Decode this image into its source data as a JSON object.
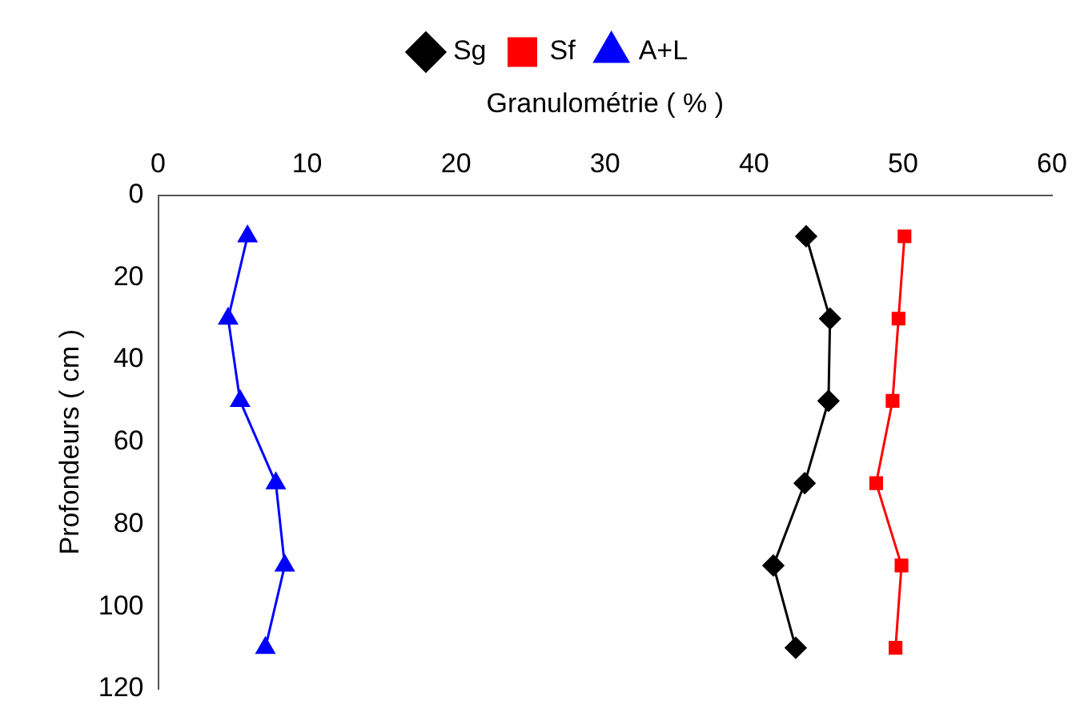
{
  "chart_data": {
    "type": "line",
    "xlabel": "Granulométrie ( % )",
    "ylabel": "Profondeurs ( cm )",
    "xlim": [
      0,
      60
    ],
    "xticks": [
      0,
      10,
      20,
      30,
      40,
      50,
      60
    ],
    "ylim": [
      120,
      0
    ],
    "yticks": [
      0,
      20,
      40,
      60,
      80,
      100,
      120
    ],
    "grid": false,
    "legend": "top",
    "line_style": "solid",
    "series": [
      {
        "name": "Sg",
        "color": "#000000",
        "marker": "diamond",
        "x": [
          43.5,
          45.1,
          45.0,
          43.4,
          41.3,
          42.8
        ],
        "values": [
          10,
          30,
          50,
          70,
          90,
          110
        ]
      },
      {
        "name": "Sf",
        "color": "#ff0000",
        "marker": "square",
        "x": [
          50.1,
          49.7,
          49.3,
          48.2,
          49.9,
          49.5
        ],
        "values": [
          10,
          30,
          50,
          70,
          90,
          110
        ]
      },
      {
        "name": "A+L",
        "color": "#0000ff",
        "marker": "triangle",
        "x": [
          6.0,
          4.7,
          5.5,
          7.9,
          8.5,
          7.2
        ],
        "values": [
          10,
          30,
          50,
          70,
          90,
          110
        ]
      }
    ]
  }
}
